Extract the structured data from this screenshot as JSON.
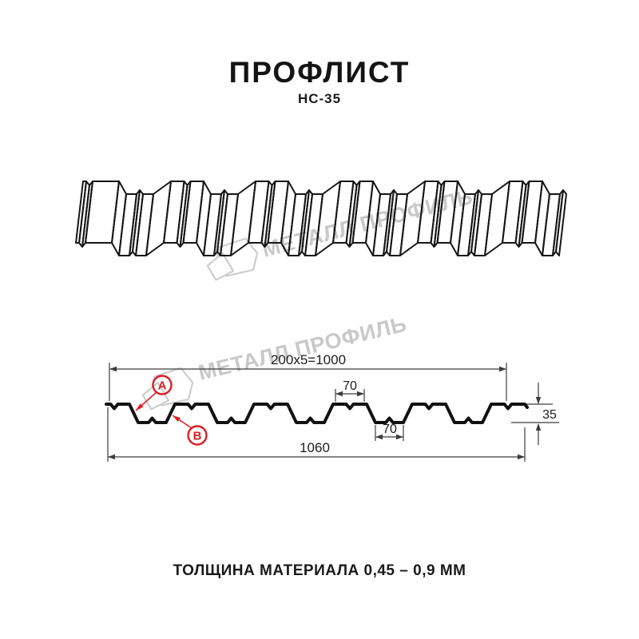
{
  "header": {
    "title": "ПРОФЛИСТ",
    "subtitle": "НС-35"
  },
  "footer": {
    "text": "ТОЛЩИНА МАТЕРИАЛА 0,45 – 0,9 ММ"
  },
  "watermark": {
    "text": "МЕТАЛЛ ПРОФИЛЬ",
    "color": "#c9c9c9"
  },
  "diagram": {
    "product": "НС-35",
    "labels": {
      "coverage": "200x5=1000",
      "rib_top_width": "70",
      "rib_bottom_width": "70",
      "profile_height": "35",
      "total_width": "1060",
      "point_a": "A",
      "point_b": "B"
    },
    "colors": {
      "line": "#161616",
      "dimension": "#3c3c3c",
      "annotation": "#dc1f24"
    }
  }
}
